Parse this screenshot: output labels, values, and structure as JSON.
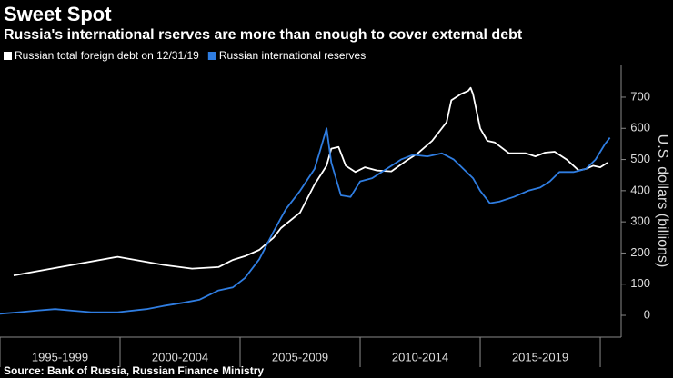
{
  "chart_data": {
    "type": "line",
    "title": "Sweet Spot",
    "subtitle": "Russia's international rserves are more than enough to cover external debt",
    "source": "Source: Bank of Russia, Russian Finance Ministry",
    "y_label": "U.S. dollars (billions)",
    "periods": [
      {
        "label": "1995-1999",
        "start": 1995,
        "end": 2000
      },
      {
        "label": "2000-2004",
        "start": 2000,
        "end": 2005
      },
      {
        "label": "2005-2009",
        "start": 2005,
        "end": 2010
      },
      {
        "label": "2010-2014",
        "start": 2010,
        "end": 2015
      },
      {
        "label": "2015-2019",
        "start": 2015,
        "end": 2020
      }
    ],
    "xlim": [
      1995,
      2020.87
    ],
    "ylim": [
      -67,
      802
    ],
    "yticks": [
      0,
      100,
      200,
      300,
      400,
      500,
      600,
      700
    ],
    "series": [
      {
        "name": "Russian total foreign debt on 12/31/19",
        "color": "#ffffff",
        "x": [
          1995.57,
          1999.9,
          2001.8,
          2003.0,
          2004.1,
          2004.7,
          2005.2,
          2005.8,
          2006.4,
          2006.7,
          2007.5,
          2008.1,
          2008.6,
          2008.8,
          2009.1,
          2009.4,
          2009.8,
          2010.2,
          2010.7,
          2011.3,
          2011.9,
          2012.4,
          2013.0,
          2013.6,
          2013.8,
          2014.2,
          2014.5,
          2014.6,
          2014.7,
          2015.0,
          2015.3,
          2015.6,
          2016.2,
          2016.9,
          2017.3,
          2017.7,
          2018.1,
          2018.6,
          2019.1,
          2019.4,
          2019.7,
          2020.0,
          2020.3
        ],
        "values": [
          128,
          188,
          162,
          150,
          155,
          178,
          190,
          210,
          250,
          280,
          330,
          420,
          480,
          535,
          540,
          480,
          460,
          475,
          465,
          462,
          495,
          520,
          560,
          620,
          690,
          710,
          720,
          730,
          710,
          600,
          560,
          555,
          520,
          520,
          510,
          522,
          525,
          500,
          465,
          470,
          480,
          475,
          490
        ]
      },
      {
        "name": "Russian international reserves",
        "color": "#2f7de1",
        "x": [
          1995.0,
          1995.8,
          1996.5,
          1997.3,
          1998.0,
          1998.8,
          1999.9,
          2001.1,
          2001.8,
          2002.6,
          2003.3,
          2004.1,
          2004.7,
          2005.2,
          2005.8,
          2006.4,
          2006.9,
          2007.5,
          2008.1,
          2008.3,
          2008.6,
          2008.8,
          2009.2,
          2009.6,
          2010.0,
          2010.5,
          2011.1,
          2011.7,
          2012.2,
          2012.8,
          2013.4,
          2013.9,
          2014.3,
          2014.7,
          2015.0,
          2015.4,
          2015.8,
          2016.4,
          2017.0,
          2017.5,
          2017.9,
          2018.3,
          2018.9,
          2019.4,
          2019.8,
          2020.2,
          2020.4
        ],
        "values": [
          5,
          10,
          15,
          20,
          15,
          10,
          10,
          20,
          30,
          40,
          50,
          80,
          90,
          120,
          180,
          270,
          340,
          400,
          470,
          520,
          600,
          490,
          385,
          380,
          430,
          440,
          470,
          500,
          515,
          510,
          520,
          500,
          470,
          440,
          400,
          360,
          365,
          380,
          400,
          410,
          430,
          460,
          460,
          470,
          500,
          550,
          570
        ]
      }
    ]
  }
}
